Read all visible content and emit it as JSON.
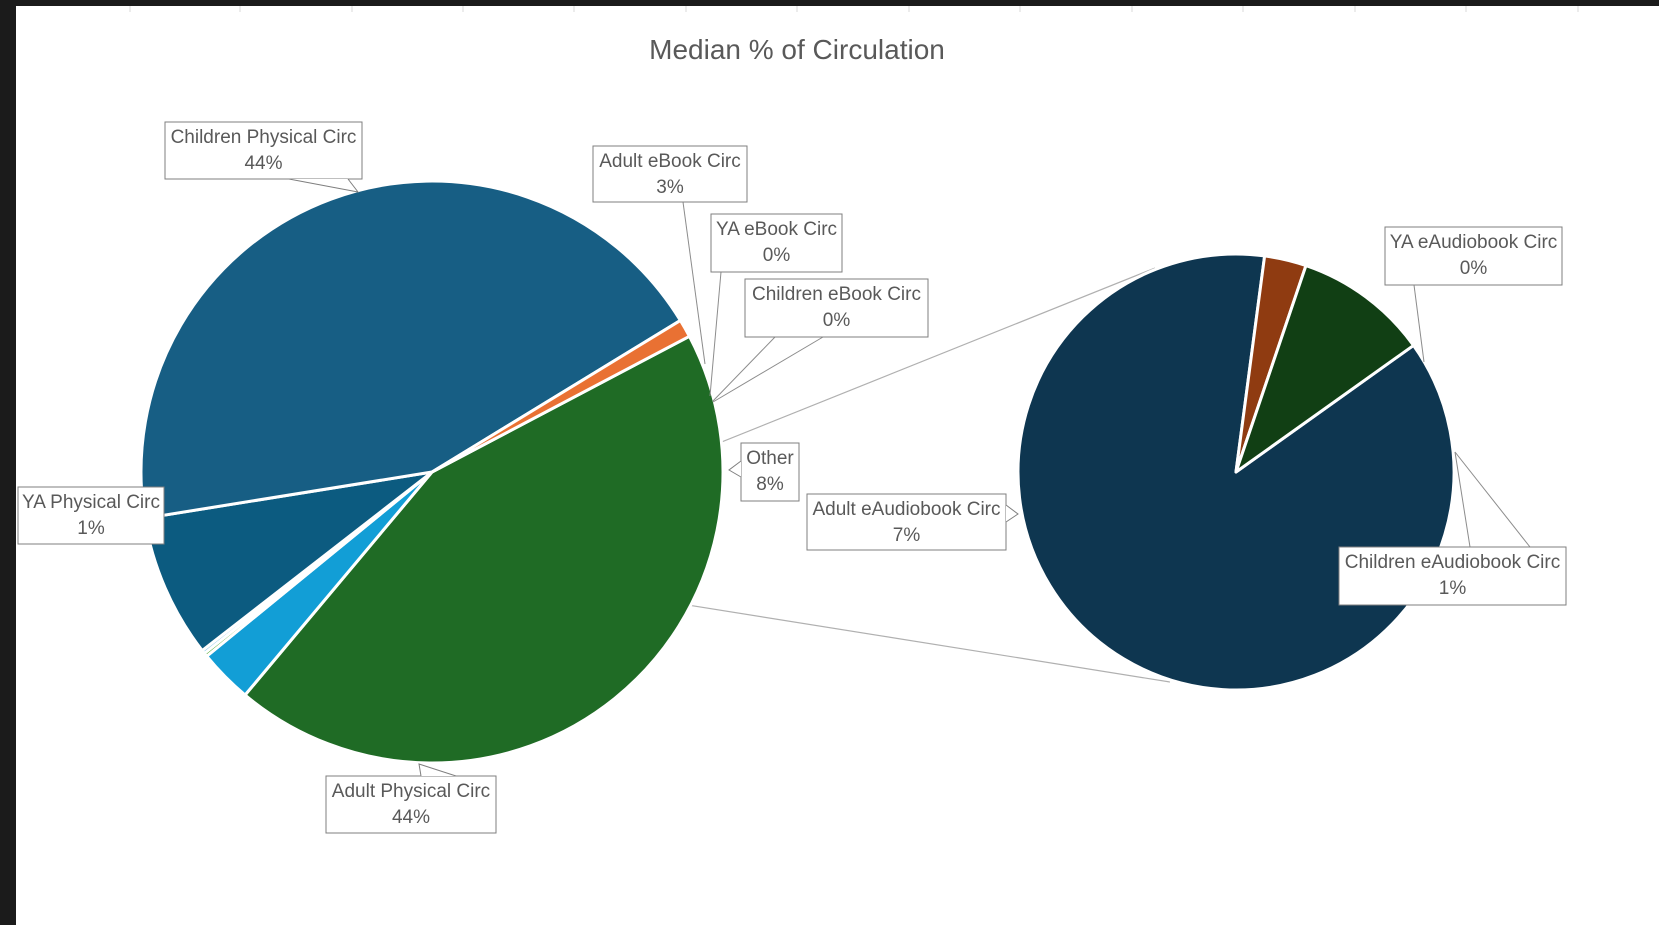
{
  "chart_data": {
    "type": "pie",
    "variant": "pie-of-pie",
    "title": "Median % of Circulation",
    "main_pie": [
      {
        "name": "Children Physical Circ",
        "value": 44,
        "label": "44%",
        "color": "#1f6b25"
      },
      {
        "name": "Adult eBook Circ",
        "value": 3,
        "label": "3%",
        "color": "#129ed6"
      },
      {
        "name": "YA eBook Circ",
        "value": 0.2,
        "label": "0%",
        "color": "#4ea72e"
      },
      {
        "name": "Children eBook Circ",
        "value": 0.2,
        "label": "0%",
        "color": "#88c6e9"
      },
      {
        "name": "Other",
        "value": 8,
        "label": "8%",
        "color": "#0c5b80"
      },
      {
        "name": "Adult Physical Circ",
        "value": 44,
        "label": "44%",
        "color": "#175e84"
      },
      {
        "name": "YA Physical Circ",
        "value": 1,
        "label": "1%",
        "color": "#e97133"
      }
    ],
    "secondary_pie": [
      {
        "name": "Adult eAudiobook Circ",
        "value": 7,
        "label": "7%",
        "color": "#0e3650"
      },
      {
        "name": "YA eAudiobook Circ",
        "value": 0.25,
        "label": "0%",
        "color": "#8f3b11"
      },
      {
        "name": "Children eAudiobook Circ",
        "value": 0.8,
        "label": "1%",
        "color": "#113f14"
      }
    ],
    "legend": "none"
  },
  "colors": {
    "background": "#ffffff",
    "frame": "#1b1b1b",
    "text": "#595959"
  }
}
